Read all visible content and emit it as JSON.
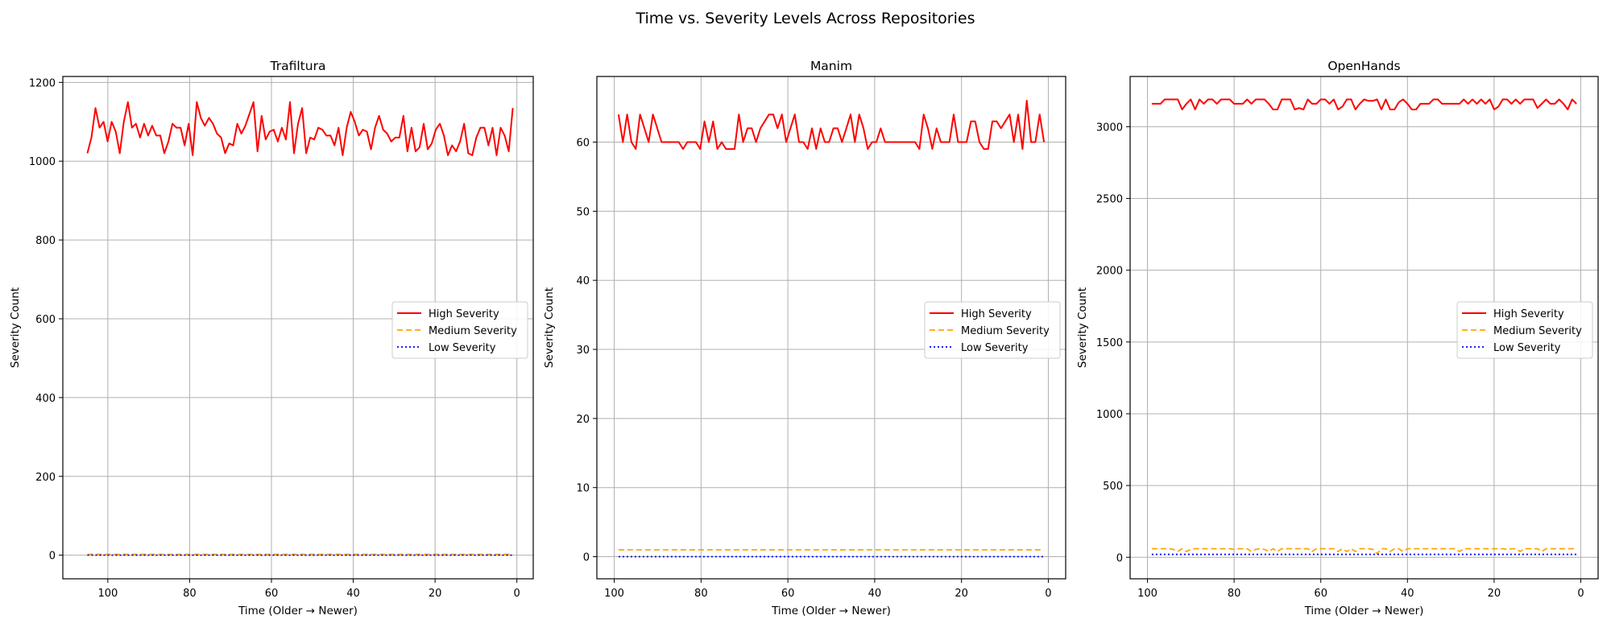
{
  "suptitle": "Time vs. Severity Levels Across Repositories",
  "colors": {
    "high": "#ff0000",
    "medium": "#ffa500",
    "low": "#0000ff",
    "grid": "#b0b0b0"
  },
  "legend_labels": [
    "High Severity",
    "Medium Severity",
    "Low Severity"
  ],
  "chart_data": [
    {
      "type": "line",
      "title": "Trafiltura",
      "xlabel": "Time (Older → Newer)",
      "ylabel": "Severity Count",
      "xlim": [
        111,
        -4
      ],
      "ylim": [
        -60,
        1215
      ],
      "xticks": [
        100,
        80,
        60,
        40,
        20,
        0
      ],
      "yticks": [
        0,
        200,
        400,
        600,
        800,
        1000,
        1200
      ],
      "legend_loc": "center-right",
      "x_range": [
        105,
        1
      ],
      "series": [
        {
          "name": "High Severity",
          "values": [
            1020,
            1060,
            1135,
            1085,
            1100,
            1050,
            1100,
            1075,
            1020,
            1100,
            1150,
            1085,
            1095,
            1060,
            1095,
            1065,
            1090,
            1065,
            1065,
            1020,
            1050,
            1095,
            1085,
            1085,
            1040,
            1095,
            1015,
            1150,
            1110,
            1090,
            1110,
            1095,
            1070,
            1060,
            1020,
            1045,
            1040,
            1095,
            1070,
            1090,
            1120,
            1150,
            1025,
            1115,
            1055,
            1075,
            1080,
            1050,
            1085,
            1055,
            1150,
            1020,
            1095,
            1135,
            1020,
            1060,
            1055,
            1085,
            1080,
            1065,
            1065,
            1040,
            1085,
            1015,
            1085,
            1125,
            1100,
            1065,
            1080,
            1075,
            1030,
            1085,
            1115,
            1080,
            1070,
            1050,
            1060,
            1060,
            1115,
            1025,
            1085,
            1025,
            1035,
            1095,
            1030,
            1045,
            1080,
            1095,
            1065,
            1015,
            1040,
            1025,
            1050,
            1095,
            1020,
            1015,
            1060,
            1085,
            1085,
            1040,
            1085,
            1015,
            1085,
            1065,
            1025,
            1135
          ]
        },
        {
          "name": "Medium Severity",
          "values": [
            2
          ]
        },
        {
          "name": "Low Severity",
          "values": [
            0
          ]
        }
      ]
    },
    {
      "type": "line",
      "title": "Manim",
      "xlabel": "Time (Older → Newer)",
      "ylabel": "Severity Count",
      "xlim": [
        104,
        -4
      ],
      "ylim": [
        -3.2,
        69.5
      ],
      "xticks": [
        100,
        80,
        60,
        40,
        20,
        0
      ],
      "yticks": [
        0,
        10,
        20,
        30,
        40,
        50,
        60
      ],
      "legend_loc": "center-right",
      "x_range": [
        99,
        1
      ],
      "series": [
        {
          "name": "High Severity",
          "values": [
            64,
            60,
            64,
            60,
            59,
            64,
            62,
            60,
            64,
            62,
            60,
            60,
            60,
            60,
            60,
            59,
            60,
            60,
            60,
            59,
            63,
            60,
            63,
            59,
            60,
            59,
            59,
            59,
            64,
            60,
            62,
            62,
            60,
            62,
            63,
            64,
            64,
            62,
            64,
            60,
            62,
            64,
            60,
            60,
            59,
            62,
            59,
            62,
            60,
            60,
            62,
            62,
            60,
            62,
            64,
            60,
            64,
            62,
            59,
            60,
            60,
            62,
            60,
            60,
            60,
            60,
            60,
            60,
            60,
            60,
            59,
            64,
            62,
            59,
            62,
            60,
            60,
            60,
            64,
            60,
            60,
            60,
            63,
            63,
            60,
            59,
            59,
            63,
            63,
            62,
            63,
            64,
            60,
            64,
            59,
            66,
            60,
            60,
            64,
            60
          ]
        },
        {
          "name": "Medium Severity",
          "values": [
            1
          ]
        },
        {
          "name": "Low Severity",
          "values": [
            0
          ]
        }
      ]
    },
    {
      "type": "line",
      "title": "OpenHands",
      "xlabel": "Time (Older → Newer)",
      "ylabel": "Severity Count",
      "xlim": [
        104,
        -4
      ],
      "ylim": [
        -150,
        3350
      ],
      "xticks": [
        100,
        80,
        60,
        40,
        20,
        0
      ],
      "yticks": [
        0,
        500,
        1000,
        1500,
        2000,
        2500,
        3000
      ],
      "legend_loc": "center-right",
      "x_range": [
        99,
        1
      ],
      "series": [
        {
          "name": "High Severity",
          "values": [
            3160,
            3160,
            3160,
            3190,
            3190,
            3190,
            3190,
            3120,
            3160,
            3190,
            3120,
            3190,
            3160,
            3190,
            3190,
            3160,
            3190,
            3190,
            3190,
            3160,
            3160,
            3160,
            3190,
            3160,
            3190,
            3190,
            3190,
            3160,
            3120,
            3120,
            3190,
            3190,
            3190,
            3120,
            3130,
            3120,
            3190,
            3160,
            3160,
            3190,
            3190,
            3160,
            3190,
            3120,
            3140,
            3190,
            3190,
            3120,
            3160,
            3190,
            3180,
            3180,
            3190,
            3120,
            3190,
            3120,
            3120,
            3170,
            3190,
            3160,
            3120,
            3120,
            3160,
            3160,
            3160,
            3190,
            3190,
            3160,
            3160,
            3160,
            3160,
            3160,
            3190,
            3160,
            3190,
            3160,
            3190,
            3160,
            3190,
            3120,
            3140,
            3190,
            3190,
            3160,
            3190,
            3160,
            3190,
            3190,
            3190,
            3130,
            3160,
            3190,
            3160,
            3160,
            3190,
            3160,
            3120,
            3190,
            3160
          ]
        },
        {
          "name": "Medium Severity",
          "values": [
            60,
            60,
            60,
            60,
            60,
            55,
            40,
            60,
            40,
            55,
            60,
            60,
            60,
            60,
            60,
            60,
            60,
            60,
            60,
            55,
            60,
            60,
            60,
            40,
            55,
            60,
            55,
            40,
            60,
            40,
            60,
            60,
            60,
            60,
            60,
            60,
            60,
            40,
            60,
            60,
            60,
            60,
            60,
            40,
            60,
            40,
            60,
            40,
            60,
            60,
            60,
            55,
            25,
            60,
            60,
            40,
            60,
            60,
            40,
            60,
            60,
            60,
            60,
            60,
            60,
            60,
            60,
            60,
            60,
            60,
            60,
            40,
            60,
            60,
            60,
            60,
            60,
            60,
            60,
            60,
            60,
            60,
            55,
            60,
            60,
            40,
            60,
            60,
            60,
            60,
            40,
            60,
            60,
            60,
            60,
            60,
            60,
            60,
            60
          ]
        },
        {
          "name": "Low Severity",
          "values": [
            20
          ]
        }
      ]
    }
  ]
}
